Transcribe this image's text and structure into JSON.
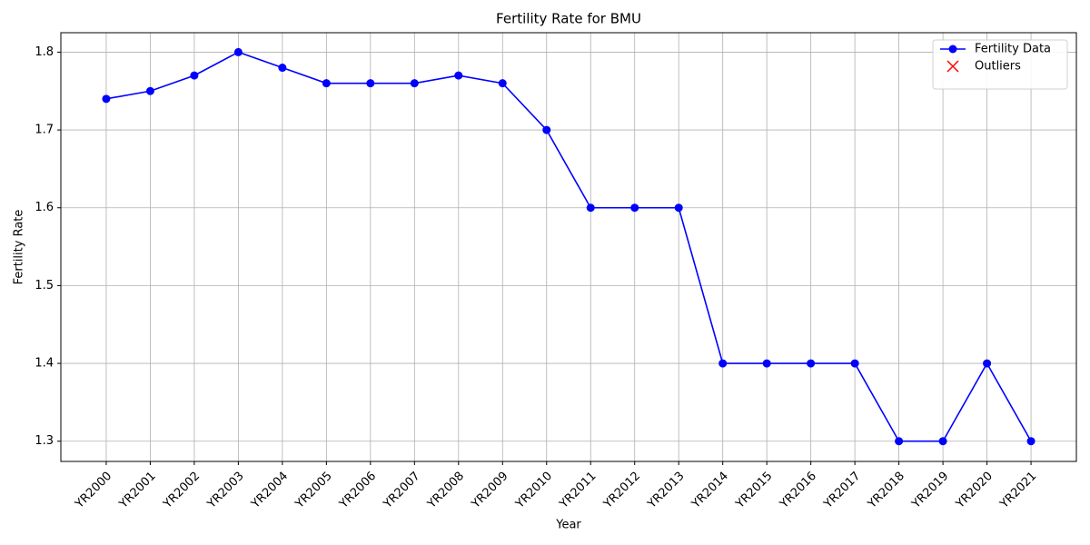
{
  "chart_data": {
    "type": "line",
    "title": "Fertility Rate for BMU",
    "x_label": "Year",
    "y_label": "Fertility Rate",
    "categories": [
      "YR2000",
      "YR2001",
      "YR2002",
      "YR2003",
      "YR2004",
      "YR2005",
      "YR2006",
      "YR2007",
      "YR2008",
      "YR2009",
      "YR2010",
      "YR2011",
      "YR2012",
      "YR2013",
      "YR2014",
      "YR2015",
      "YR2016",
      "YR2017",
      "YR2018",
      "YR2019",
      "YR2020",
      "YR2021"
    ],
    "series": [
      {
        "name": "Fertility Data",
        "color": "#0000ff",
        "marker": "o",
        "values": [
          1.74,
          1.75,
          1.77,
          1.8,
          1.78,
          1.76,
          1.76,
          1.76,
          1.77,
          1.76,
          1.7,
          1.6,
          1.6,
          1.6,
          1.4,
          1.4,
          1.4,
          1.4,
          1.3,
          1.3,
          1.4,
          1.3
        ]
      },
      {
        "name": "Outliers",
        "color": "#ff0000",
        "marker": "x",
        "values": [
          null,
          null,
          null,
          null,
          null,
          null,
          null,
          null,
          null,
          null,
          null,
          null,
          null,
          null,
          null,
          null,
          null,
          null,
          null,
          null,
          null,
          null
        ]
      }
    ],
    "ylim": [
      1.274,
      1.825
    ],
    "yticks": [
      1.3,
      1.4,
      1.5,
      1.6,
      1.7,
      1.8
    ],
    "grid": true,
    "legend": "upper right"
  }
}
